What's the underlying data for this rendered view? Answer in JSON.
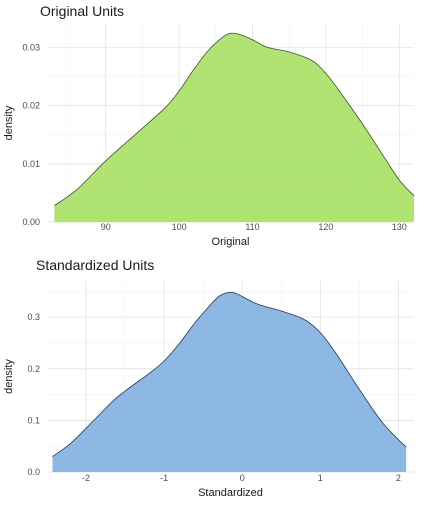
{
  "chart_data": [
    {
      "type": "area",
      "title": "Original Units",
      "xlabel": "Original",
      "ylabel": "density",
      "xlim": [
        82,
        132
      ],
      "ylim": [
        0,
        0.034
      ],
      "xticks": [
        90,
        100,
        110,
        120,
        130
      ],
      "yticks": [
        0.0,
        0.01,
        0.02,
        0.03
      ],
      "ytick_labels": [
        "0.00",
        "0.01",
        "0.02",
        "0.03"
      ],
      "grid": true,
      "colors": {
        "fill": "#a6e164",
        "line": "#3a5a10"
      },
      "series": [
        {
          "x": [
            83,
            86,
            90,
            94,
            98,
            100,
            102,
            104,
            106,
            107,
            108,
            110,
            112,
            115,
            118,
            120,
            122,
            125,
            128,
            130,
            132
          ],
          "y": [
            0.0028,
            0.0055,
            0.0105,
            0.015,
            0.0195,
            0.0225,
            0.0262,
            0.0295,
            0.0318,
            0.0324,
            0.0323,
            0.0313,
            0.03,
            0.0292,
            0.0278,
            0.0255,
            0.0222,
            0.0168,
            0.011,
            0.0072,
            0.0045
          ]
        }
      ]
    },
    {
      "type": "area",
      "title": "Standardized Units",
      "xlabel": "Standardized",
      "ylabel": "density",
      "xlim": [
        -2.5,
        2.2
      ],
      "ylim": [
        0,
        0.37
      ],
      "xticks": [
        -2,
        -1,
        0,
        1,
        2
      ],
      "yticks": [
        0.0,
        0.1,
        0.2,
        0.3
      ],
      "ytick_labels": [
        "0.0",
        "0.1",
        "0.2",
        "0.3"
      ],
      "grid": true,
      "colors": {
        "fill": "#7fb0e0",
        "line": "#1a3a66"
      },
      "series": [
        {
          "x": [
            -2.43,
            -2.2,
            -1.9,
            -1.6,
            -1.2,
            -1.0,
            -0.8,
            -0.6,
            -0.4,
            -0.3,
            -0.2,
            -0.1,
            0.0,
            0.2,
            0.5,
            0.8,
            1.0,
            1.2,
            1.5,
            1.8,
            2.1
          ],
          "y": [
            0.03,
            0.055,
            0.1,
            0.145,
            0.19,
            0.215,
            0.25,
            0.29,
            0.325,
            0.34,
            0.347,
            0.347,
            0.34,
            0.325,
            0.312,
            0.295,
            0.27,
            0.23,
            0.16,
            0.095,
            0.048
          ]
        }
      ]
    }
  ]
}
